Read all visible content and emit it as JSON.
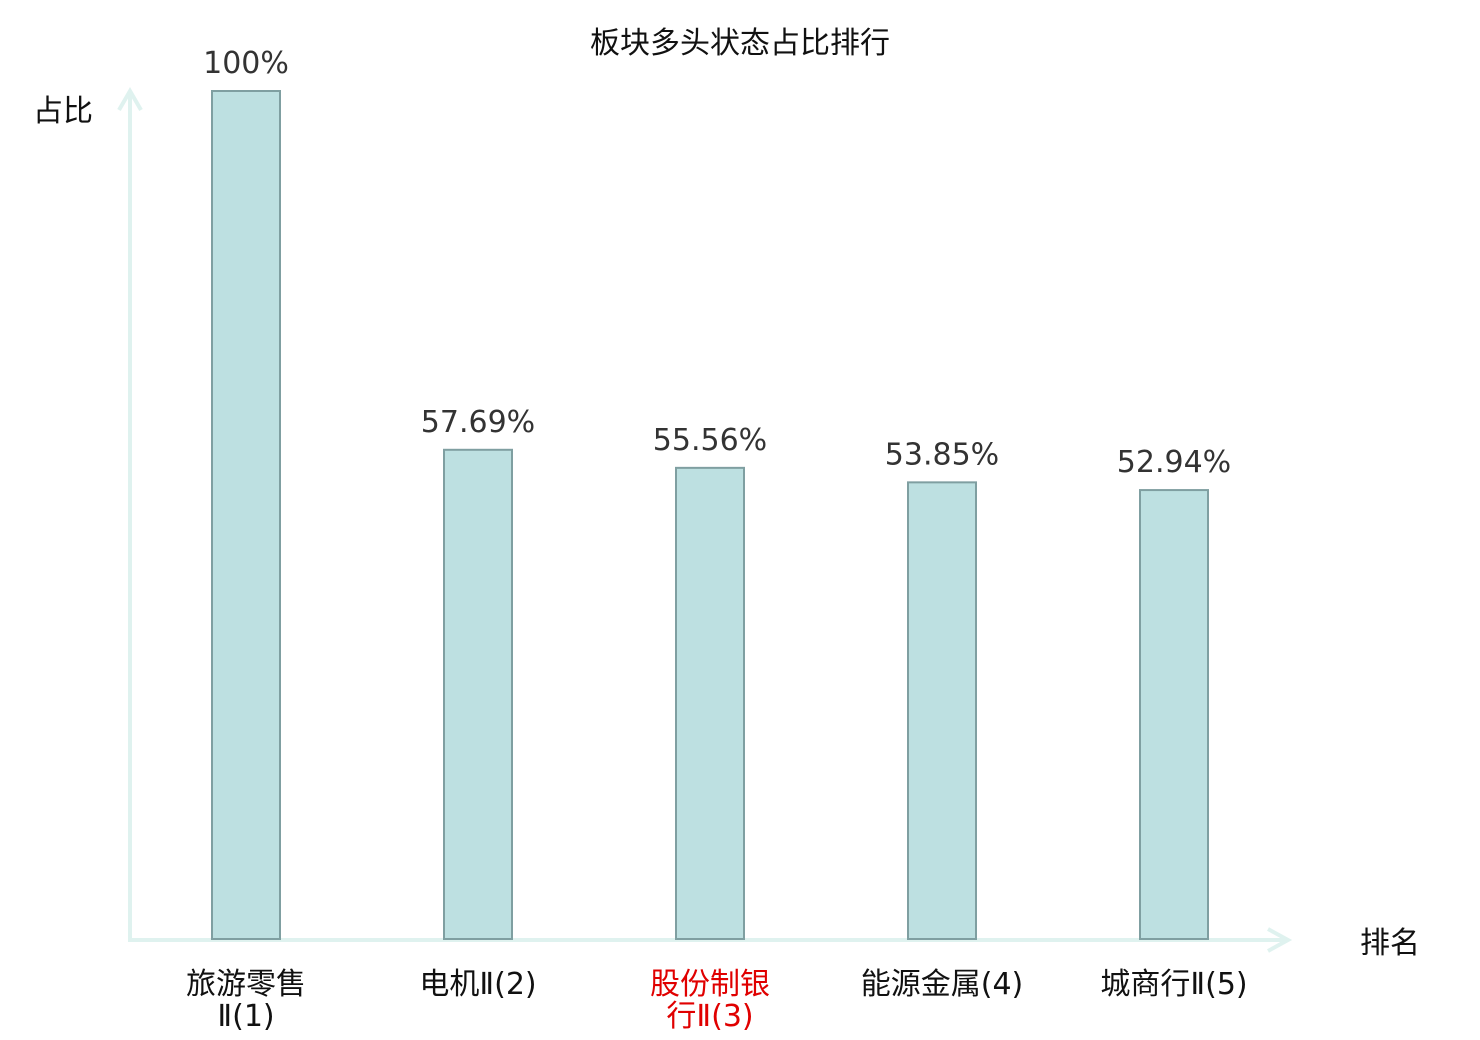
{
  "chart_data": {
    "type": "bar",
    "title": "板块多头状态占比排行",
    "ylabel": "占比",
    "xlabel": "排名",
    "categories": [
      {
        "lines": [
          "旅游零售",
          "Ⅱ(1)"
        ],
        "highlight": false
      },
      {
        "lines": [
          "电机Ⅱ(2)"
        ],
        "highlight": false
      },
      {
        "lines": [
          "股份制银",
          "行Ⅱ(3)"
        ],
        "highlight": true
      },
      {
        "lines": [
          "能源金属(4)"
        ],
        "highlight": false
      },
      {
        "lines": [
          "城商行Ⅱ(5)"
        ],
        "highlight": false
      }
    ],
    "values": [
      100,
      57.69,
      55.56,
      53.85,
      52.94
    ],
    "value_labels": [
      "100%",
      "57.69%",
      "55.56%",
      "53.85%",
      "52.94%"
    ],
    "ylim": [
      0,
      100
    ],
    "grid": false,
    "legend": "none"
  },
  "colors": {
    "bar_fill": "#bde0e1",
    "bar_stroke": "#7f9fa1",
    "axis": "#dff2ef",
    "text": "#111111",
    "value_text": "#333333",
    "highlight_text": "#e00000"
  }
}
